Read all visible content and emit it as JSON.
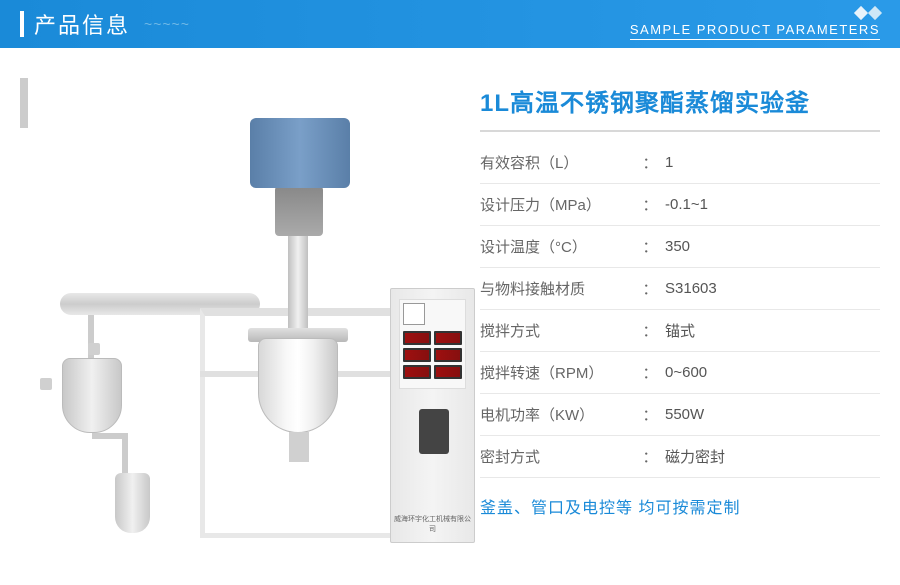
{
  "header": {
    "title": "产品信息",
    "subtitle": "SAMPLE PRODUCT PARAMETERS",
    "wave": "~~~~~"
  },
  "product": {
    "name": "1L高温不锈钢聚酯蒸馏实验釜"
  },
  "specs": [
    {
      "label": "有效容积（L）",
      "value": "1"
    },
    {
      "label": "设计压力（MPa）",
      "value": "-0.1~1"
    },
    {
      "label": "设计温度（°C）",
      "value": "350"
    },
    {
      "label": "与物料接触材质",
      "value": "S31603"
    },
    {
      "label": "搅拌方式",
      "value": "锚式"
    },
    {
      "label": "搅拌转速（RPM）",
      "value": "0~600"
    },
    {
      "label": "电机功率（KW）",
      "value": "550W"
    },
    {
      "label": "密封方式",
      "value": "磁力密封"
    }
  ],
  "footer_note": "釜盖、管口及电控等 均可按需定制",
  "cabinet_label": "威海环宇化工机械有限公司",
  "colors": {
    "primary": "#1a8ad8",
    "header_bg_start": "#1a8ad8",
    "header_bg_end": "#2a9ae8",
    "border": "#e8e8e8",
    "text": "#555",
    "text_light": "#666"
  }
}
